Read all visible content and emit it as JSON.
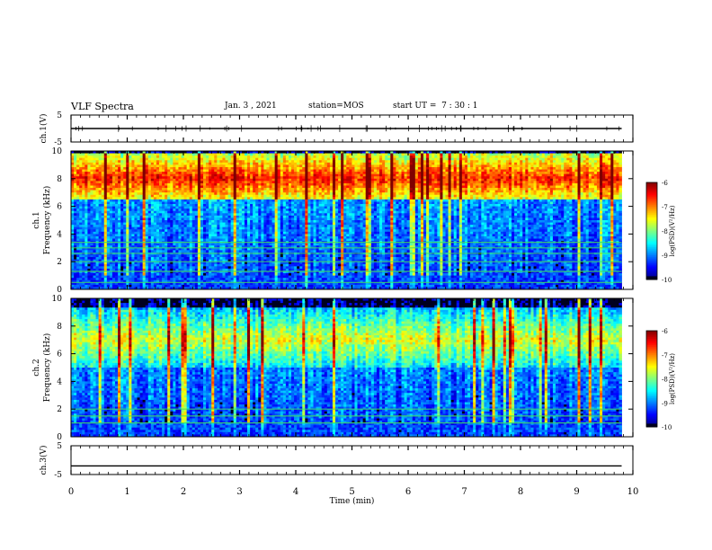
{
  "header": {
    "title": "VLF Spectra",
    "date": "Jan. 3 , 2021",
    "station": "station=MOS",
    "start_ut": "start UT =  7 : 30 : 1"
  },
  "chart_data": [
    {
      "type": "line",
      "panel": "ch1-voltage",
      "ylabel": "ch.1(V)",
      "ylim": [
        -5,
        5
      ],
      "yticks": [
        "5",
        "-5"
      ],
      "xlim": [
        0,
        10
      ],
      "series": [
        {
          "values_note_free": true,
          "x": [
            0,
            9.8
          ],
          "y": [
            0,
            0
          ]
        }
      ]
    },
    {
      "type": "heatmap",
      "panel": "ch1-spectrogram",
      "ylabel": [
        "ch.1",
        "Frequency (kHz)"
      ],
      "ylim": [
        0,
        10
      ],
      "yticks": [
        "0",
        "2",
        "4",
        "6",
        "8",
        "10"
      ],
      "xlim": [
        0,
        10
      ],
      "data_end_min": 9.8,
      "intense_band_khz": [
        6.5,
        9.5
      ],
      "constant_lines_khz": [
        0.5,
        1.3,
        2.0,
        2.6,
        3.0,
        3.4
      ],
      "colorbar": {
        "label": "log(PSD)(V²/Hz)",
        "ticks": [
          "-6",
          "-7",
          "-8",
          "-9",
          "-10"
        ],
        "range": [
          -10,
          -6
        ]
      }
    },
    {
      "type": "heatmap",
      "panel": "ch2-spectrogram",
      "ylabel": [
        "ch.2",
        "Frequency (kHz)"
      ],
      "ylim": [
        0,
        10
      ],
      "yticks": [
        "0",
        "2",
        "4",
        "6",
        "8",
        "10"
      ],
      "xlim": [
        0,
        10
      ],
      "data_end_min": 9.8,
      "intense_band_khz": [
        5.0,
        9.0
      ],
      "constant_lines_khz": [
        1.0,
        1.5,
        2.0
      ],
      "colorbar": {
        "label": "log(PSD)(V²/Hz)",
        "ticks": [
          "-6",
          "-7",
          "-8",
          "-9",
          "-10"
        ],
        "range": [
          -10,
          -6
        ]
      }
    },
    {
      "type": "line",
      "panel": "ch3-voltage",
      "ylabel": "ch.3(V)",
      "ylim": [
        -5,
        5
      ],
      "yticks": [
        "5",
        "-5"
      ],
      "xlim": [
        0,
        10
      ],
      "xlabel": "Time  (min)",
      "xticks": [
        "0",
        "1",
        "2",
        "3",
        "4",
        "5",
        "6",
        "7",
        "8",
        "9",
        "10"
      ],
      "series": [
        {
          "x": [
            0,
            9.8
          ],
          "y": [
            -2,
            -2
          ]
        }
      ]
    }
  ]
}
